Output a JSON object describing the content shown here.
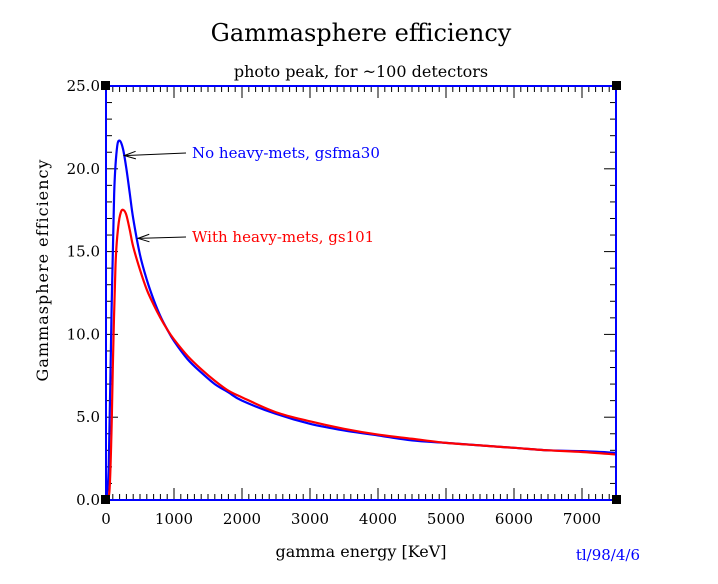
{
  "chart_data": {
    "type": "line",
    "title": "Gammasphere efficiency",
    "subtitle": "photo peak, for ~100 detectors",
    "xlabel": "gamma energy [KeV]",
    "ylabel": "Gammasphere efficiency",
    "xlim": [
      0,
      7500
    ],
    "ylim": [
      0,
      25
    ],
    "x_ticks": [
      0,
      1000,
      2000,
      3000,
      4000,
      5000,
      6000,
      7000
    ],
    "x_tick_labels": [
      "0",
      "1000",
      "2000",
      "3000",
      "4000",
      "5000",
      "6000",
      "7000"
    ],
    "y_ticks": [
      0,
      5,
      10,
      15,
      20,
      25
    ],
    "y_tick_labels": [
      "0.0",
      "5.0",
      "10.0",
      "15.0",
      "20.0",
      "25.0"
    ],
    "grid": false,
    "series": [
      {
        "name": "No heavy-mets, gsfma30",
        "color": "#0000ff",
        "x": [
          0,
          40,
          80,
          120,
          160,
          200,
          250,
          300,
          350,
          400,
          500,
          600,
          700,
          800,
          900,
          1000,
          1200,
          1400,
          1600,
          1800,
          2000,
          2500,
          3000,
          3500,
          4000,
          4500,
          5000,
          5500,
          6000,
          6500,
          7000,
          7500
        ],
        "y": [
          0.0,
          2.0,
          11.0,
          18.5,
          21.2,
          21.7,
          21.2,
          20.0,
          18.5,
          17.0,
          14.8,
          13.3,
          12.1,
          11.1,
          10.3,
          9.6,
          8.5,
          7.7,
          7.0,
          6.5,
          6.0,
          5.2,
          4.6,
          4.2,
          3.9,
          3.6,
          3.45,
          3.3,
          3.15,
          3.0,
          2.95,
          2.85
        ]
      },
      {
        "name": "With heavy-mets, gs101",
        "color": "#ff0000",
        "x": [
          0,
          50,
          80,
          100,
          140,
          180,
          220,
          260,
          300,
          350,
          400,
          500,
          600,
          700,
          800,
          900,
          1000,
          1200,
          1400,
          1600,
          1800,
          2000,
          2500,
          3000,
          3500,
          4000,
          4500,
          5000,
          5500,
          6000,
          6500,
          7000,
          7500
        ],
        "y": [
          0.0,
          0.5,
          4.0,
          8.0,
          14.2,
          16.5,
          17.4,
          17.5,
          17.2,
          16.3,
          15.3,
          13.9,
          12.7,
          11.8,
          11.0,
          10.3,
          9.7,
          8.7,
          7.9,
          7.2,
          6.6,
          6.2,
          5.3,
          4.75,
          4.3,
          3.95,
          3.7,
          3.45,
          3.3,
          3.15,
          3.0,
          2.9,
          2.75
        ]
      }
    ],
    "annotations": [
      {
        "text": "No heavy-mets, gsfma30",
        "color": "#0000ff",
        "point_x": 270,
        "point_y": 20.8
      },
      {
        "text": "With heavy-mets, gs101",
        "color": "#ff0000",
        "point_x": 470,
        "point_y": 15.8
      }
    ]
  },
  "footer_note": {
    "text": "tl/98/4/6",
    "color": "#0000ff"
  }
}
